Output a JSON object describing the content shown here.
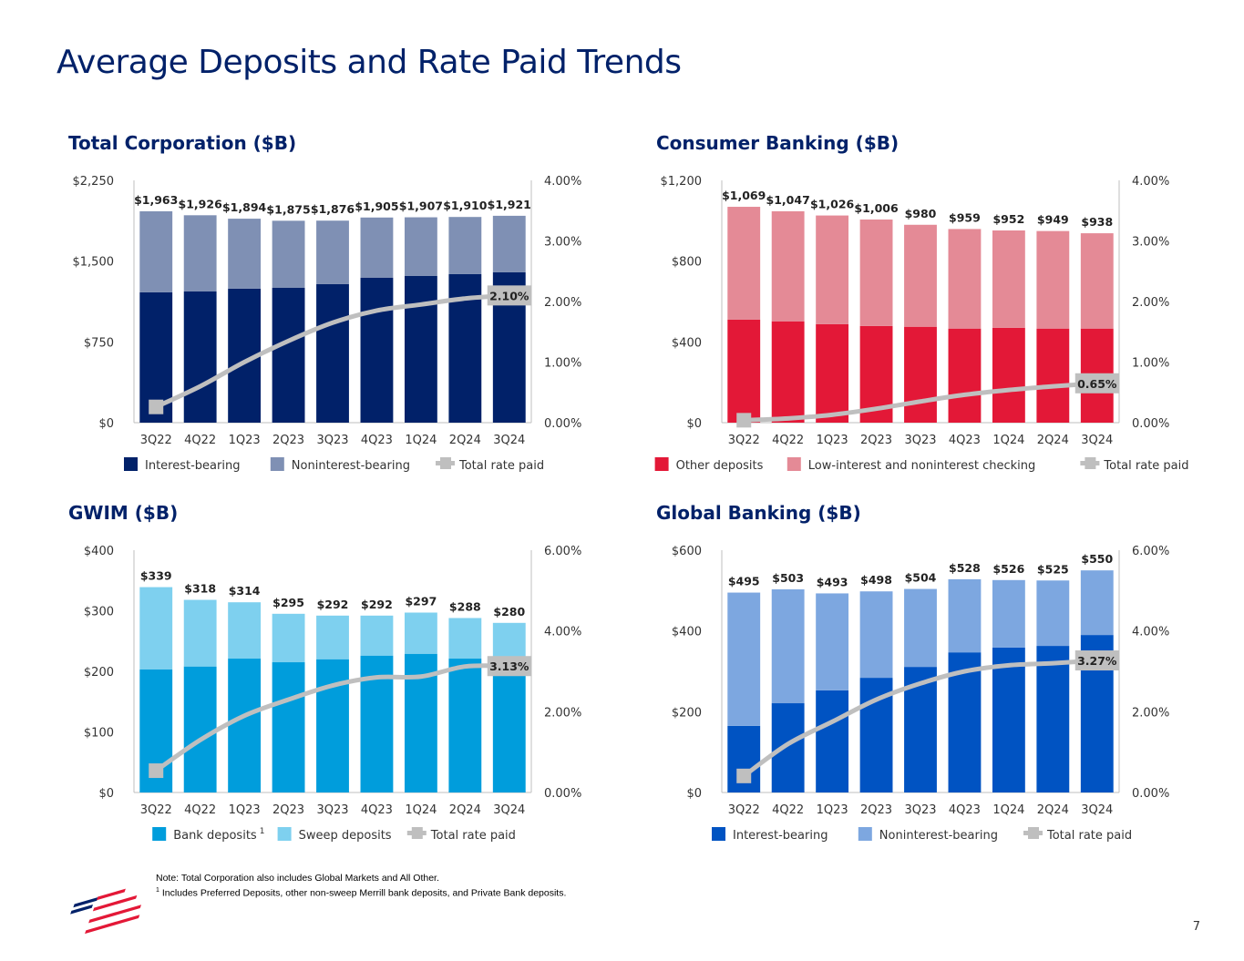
{
  "title": "Average Deposits and Rate Paid Trends",
  "note": "Note: Total Corporation also includes Global Markets and All Other.",
  "footnote_marker": "1",
  "footnote": "Includes Preferred Deposits, other non-sweep Merrill bank deposits, and Private Bank deposits.",
  "page_number": "7",
  "line_color": "#bfbfbf",
  "chart_data": [
    {
      "type": "bar",
      "stacked": true,
      "title": "Total Corporation ($B)",
      "categories": [
        "3Q22",
        "4Q22",
        "1Q23",
        "2Q23",
        "3Q23",
        "4Q23",
        "1Q24",
        "2Q24",
        "3Q24"
      ],
      "ylim": [
        0,
        2250
      ],
      "yticks": [
        "$0",
        "$750",
        "$1,500",
        "$2,250"
      ],
      "ytick_values": [
        0,
        750,
        1500,
        2250
      ],
      "y2lim": [
        0,
        4
      ],
      "y2ticks": [
        "0.00%",
        "1.00%",
        "2.00%",
        "3.00%",
        "4.00%"
      ],
      "y2tick_values": [
        0,
        1,
        2,
        3,
        4
      ],
      "series": [
        {
          "name": "Interest-bearing",
          "color": "#012169",
          "values": [
            1210,
            1218,
            1244,
            1252,
            1286,
            1345,
            1362,
            1379,
            1396
          ]
        },
        {
          "name": "Noninterest-bearing",
          "color": "#7f90b4",
          "values": [
            753,
            708,
            650,
            623,
            590,
            560,
            545,
            531,
            525
          ]
        }
      ],
      "totals": [
        "$1,963",
        "$1,926",
        "$1,894",
        "$1,875",
        "$1,876",
        "$1,905",
        "$1,907",
        "$1,910",
        "$1,921"
      ],
      "line": {
        "name": "Total rate paid",
        "axis": "right",
        "values": [
          0.26,
          0.6,
          1.0,
          1.35,
          1.65,
          1.85,
          1.95,
          2.05,
          2.1
        ],
        "end_label": "2.10%"
      },
      "legend": [
        {
          "label": "Interest-bearing",
          "sup": ""
        },
        {
          "label": "Noninterest-bearing",
          "sup": ""
        },
        {
          "label": "Total rate paid",
          "sup": ""
        }
      ]
    },
    {
      "type": "bar",
      "stacked": true,
      "title": "Consumer Banking ($B)",
      "categories": [
        "3Q22",
        "4Q22",
        "1Q23",
        "2Q23",
        "3Q23",
        "4Q23",
        "1Q24",
        "2Q24",
        "3Q24"
      ],
      "ylim": [
        0,
        1200
      ],
      "yticks": [
        "$0",
        "$400",
        "$800",
        "$1,200"
      ],
      "ytick_values": [
        0,
        400,
        800,
        1200
      ],
      "y2lim": [
        0,
        4
      ],
      "y2ticks": [
        "0.00%",
        "1.00%",
        "2.00%",
        "3.00%",
        "4.00%"
      ],
      "y2tick_values": [
        0,
        1,
        2,
        3,
        4
      ],
      "series": [
        {
          "name": "Other deposits",
          "color": "#e31837",
          "values": [
            510,
            502,
            488,
            479,
            475,
            466,
            470,
            466,
            466
          ]
        },
        {
          "name": "Low-interest and noninterest checking",
          "color": "#e48a96",
          "values": [
            559,
            545,
            538,
            527,
            505,
            493,
            482,
            483,
            472
          ]
        }
      ],
      "totals": [
        "$1,069",
        "$1,047",
        "$1,026",
        "$1,006",
        "$980",
        "$959",
        "$952",
        "$949",
        "$938"
      ],
      "line": {
        "name": "Total rate paid",
        "axis": "right",
        "values": [
          0.04,
          0.07,
          0.13,
          0.23,
          0.35,
          0.46,
          0.54,
          0.6,
          0.65
        ],
        "end_label": "0.65%"
      },
      "legend": [
        {
          "label": "Other deposits",
          "sup": ""
        },
        {
          "label": "Low-interest and noninterest checking",
          "sup": ""
        },
        {
          "label": "Total rate paid",
          "sup": ""
        }
      ]
    },
    {
      "type": "bar",
      "stacked": true,
      "title": "GWIM ($B)",
      "categories": [
        "3Q22",
        "4Q22",
        "1Q23",
        "2Q23",
        "3Q23",
        "4Q23",
        "1Q24",
        "2Q24",
        "3Q24"
      ],
      "ylim": [
        0,
        400
      ],
      "yticks": [
        "$0",
        "$100",
        "$200",
        "$300",
        "$400"
      ],
      "ytick_values": [
        0,
        100,
        200,
        300,
        400
      ],
      "y2lim": [
        0,
        6
      ],
      "y2ticks": [
        "0.00%",
        "2.00%",
        "4.00%",
        "6.00%"
      ],
      "y2tick_values": [
        0,
        2,
        4,
        6
      ],
      "series": [
        {
          "name": "Bank deposits",
          "color": "#009ddc",
          "values": [
            203,
            208,
            221,
            215,
            220,
            226,
            229,
            221,
            215
          ]
        },
        {
          "name": "Sweep deposits",
          "color": "#7ed0ef",
          "values": [
            136,
            110,
            93,
            80,
            72,
            66,
            68,
            67,
            65
          ]
        }
      ],
      "totals": [
        "$339",
        "$318",
        "$314",
        "$295",
        "$292",
        "$292",
        "$297",
        "$288",
        "$280"
      ],
      "line": {
        "name": "Total rate paid",
        "axis": "right",
        "values": [
          0.54,
          1.3,
          1.9,
          2.3,
          2.65,
          2.85,
          2.87,
          3.12,
          3.13
        ],
        "end_label": "3.13%"
      },
      "legend": [
        {
          "label": "Bank deposits",
          "sup": "1"
        },
        {
          "label": "Sweep deposits",
          "sup": ""
        },
        {
          "label": "Total rate paid",
          "sup": ""
        }
      ]
    },
    {
      "type": "bar",
      "stacked": true,
      "title": "Global Banking ($B)",
      "categories": [
        "3Q22",
        "4Q22",
        "1Q23",
        "2Q23",
        "3Q23",
        "4Q23",
        "1Q24",
        "2Q24",
        "3Q24"
      ],
      "ylim": [
        0,
        600
      ],
      "yticks": [
        "$0",
        "$200",
        "$400",
        "$600"
      ],
      "ytick_values": [
        0,
        200,
        400,
        600
      ],
      "y2lim": [
        0,
        6
      ],
      "y2ticks": [
        "0.00%",
        "2.00%",
        "4.00%",
        "6.00%"
      ],
      "y2tick_values": [
        0,
        2,
        4,
        6
      ],
      "series": [
        {
          "name": "Interest-bearing",
          "color": "#0053c2",
          "values": [
            165,
            221,
            253,
            284,
            311,
            347,
            359,
            363,
            390
          ]
        },
        {
          "name": "Noninterest-bearing",
          "color": "#7da7e0",
          "values": [
            330,
            282,
            240,
            214,
            193,
            181,
            167,
            162,
            160
          ]
        }
      ],
      "totals": [
        "$495",
        "$503",
        "$493",
        "$498",
        "$504",
        "$528",
        "$526",
        "$525",
        "$550"
      ],
      "line": {
        "name": "Total rate paid",
        "axis": "right",
        "values": [
          0.41,
          1.2,
          1.75,
          2.3,
          2.7,
          3.0,
          3.15,
          3.2,
          3.27
        ],
        "end_label": "3.27%"
      },
      "legend": [
        {
          "label": "Interest-bearing",
          "sup": ""
        },
        {
          "label": "Noninterest-bearing",
          "sup": ""
        },
        {
          "label": "Total rate paid",
          "sup": ""
        }
      ]
    }
  ]
}
